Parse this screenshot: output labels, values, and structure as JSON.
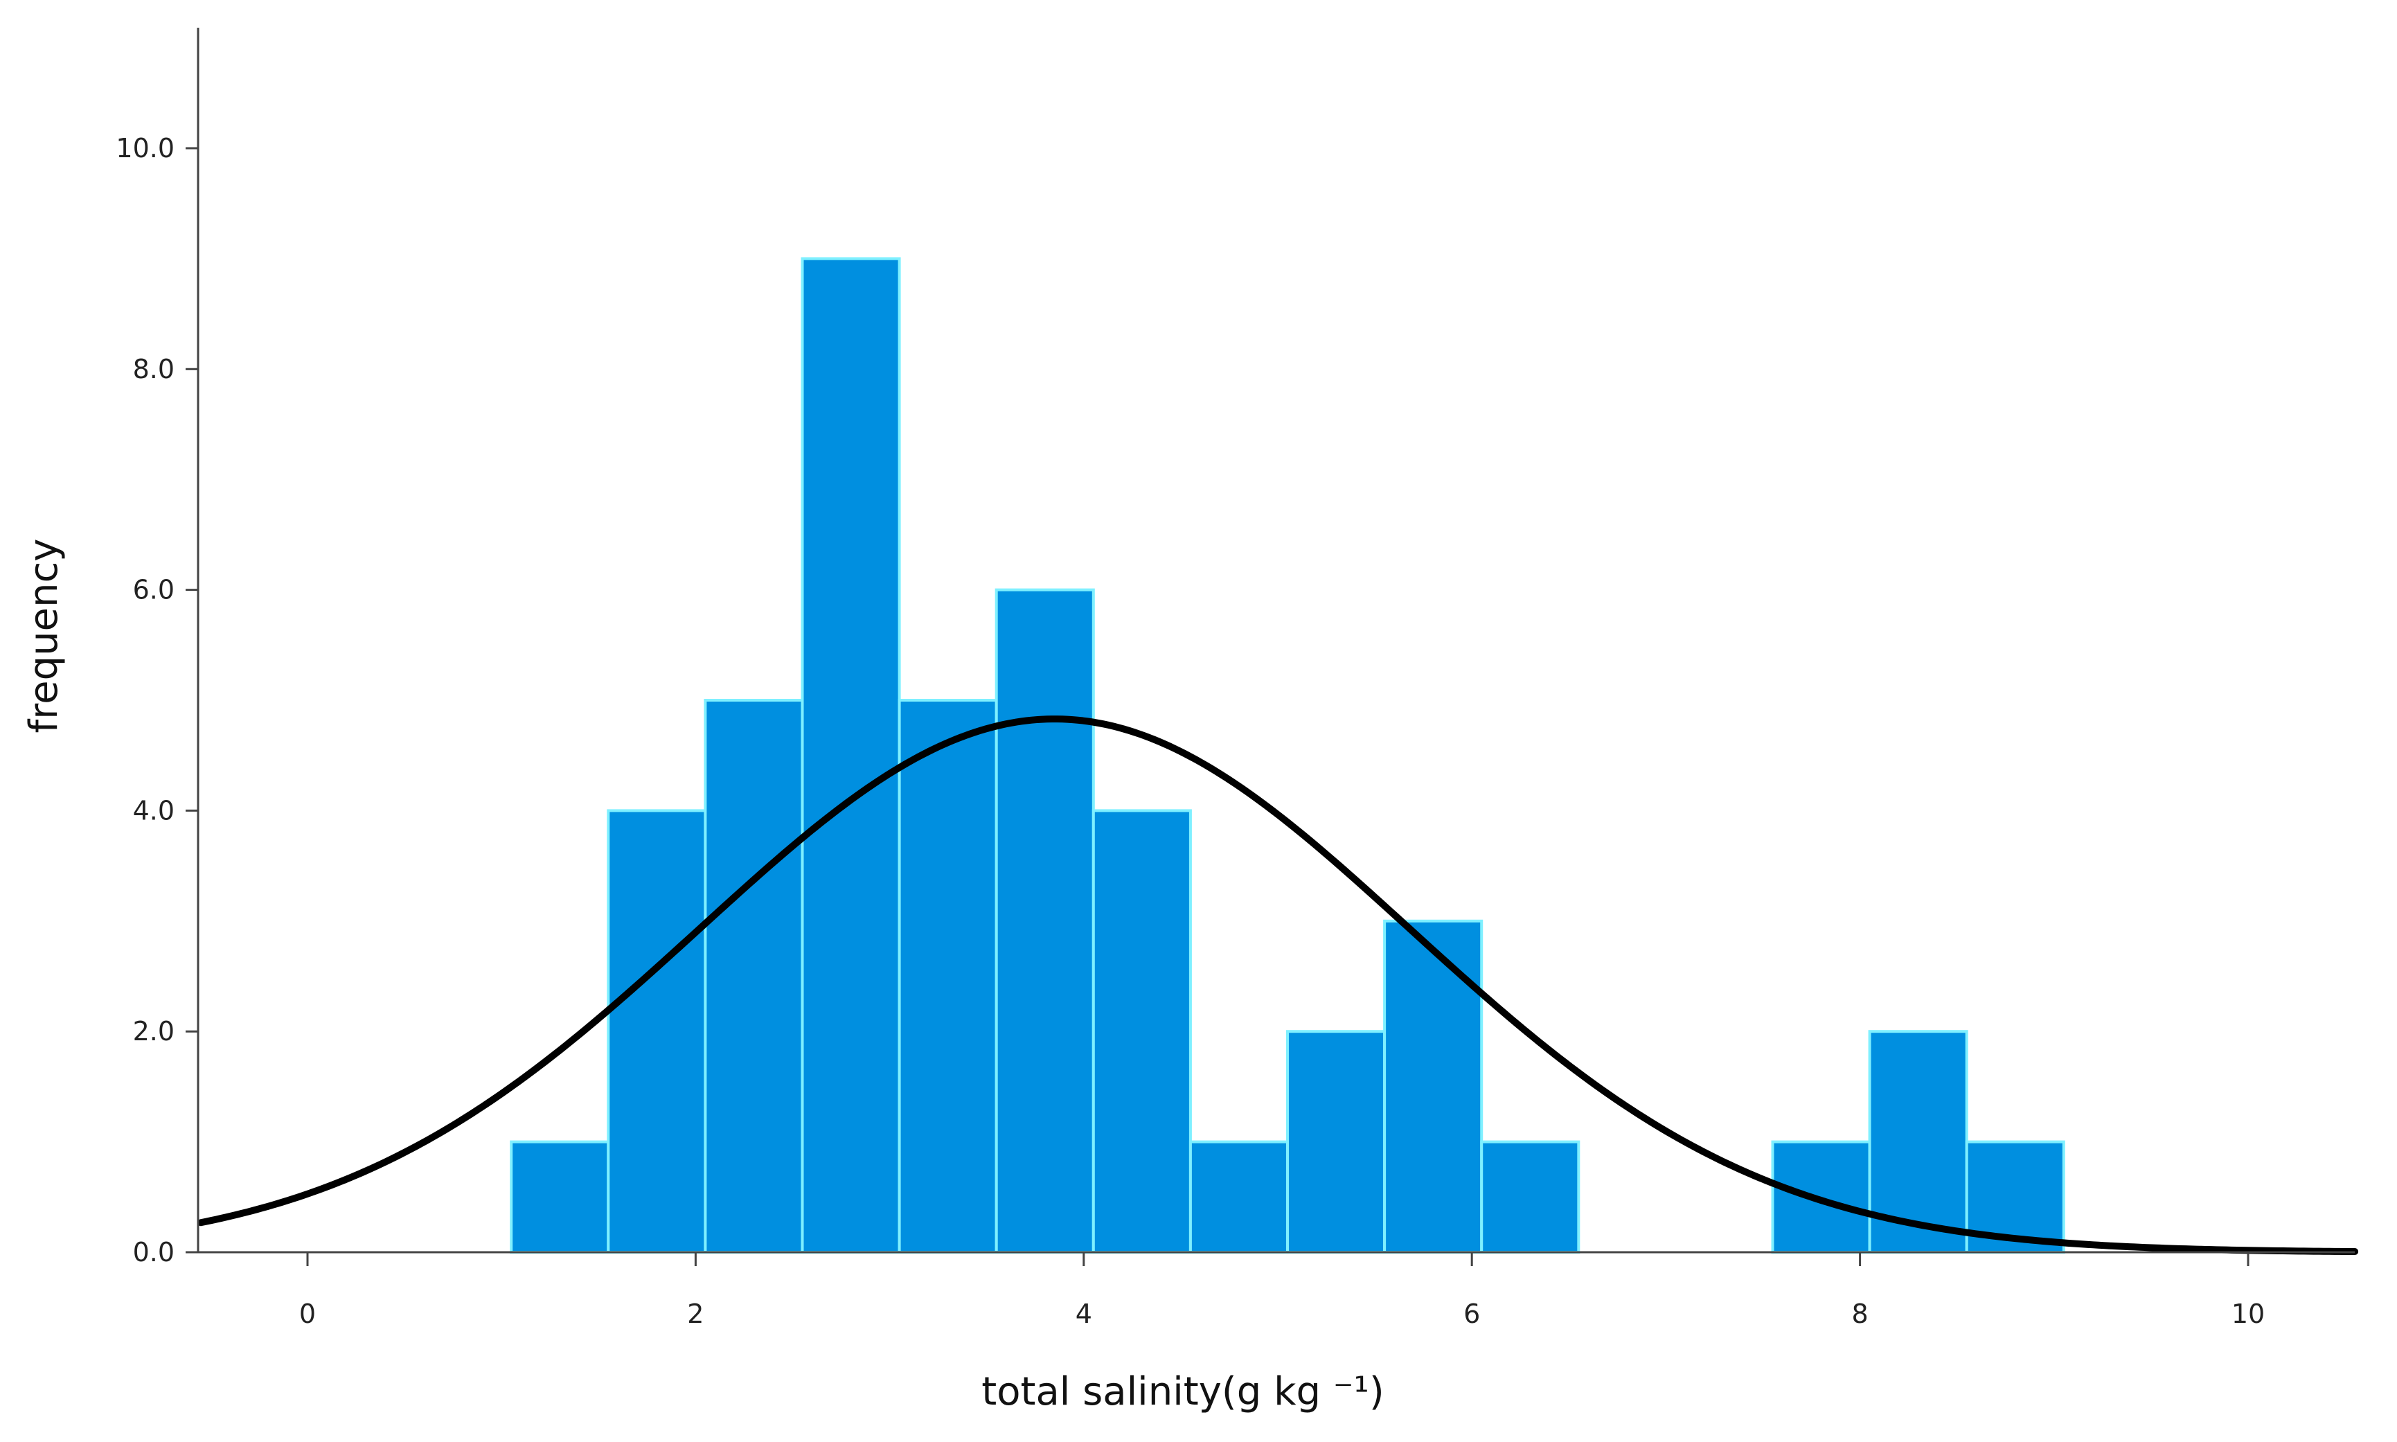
{
  "chart_data": {
    "type": "bar",
    "title": "",
    "xlabel": "total salinity(g kg ⁻¹)",
    "ylabel": "frequency",
    "xlim": [
      -0.55,
      10.55
    ],
    "ylim": [
      0,
      11
    ],
    "x_ticks": [
      "0",
      "2",
      "4",
      "6",
      "8",
      "10"
    ],
    "y_ticks": [
      "0.0",
      "2.0",
      "4.0",
      "6.0",
      "8.0",
      "10.0"
    ],
    "grid": false,
    "bin_width": 0.5,
    "bins": [
      {
        "start": 1.05,
        "end": 1.55,
        "value": 1
      },
      {
        "start": 1.55,
        "end": 2.05,
        "value": 4
      },
      {
        "start": 2.05,
        "end": 2.55,
        "value": 5
      },
      {
        "start": 2.55,
        "end": 3.05,
        "value": 9
      },
      {
        "start": 3.05,
        "end": 3.55,
        "value": 5
      },
      {
        "start": 3.55,
        "end": 4.05,
        "value": 6
      },
      {
        "start": 4.05,
        "end": 4.55,
        "value": 4
      },
      {
        "start": 4.55,
        "end": 5.05,
        "value": 1
      },
      {
        "start": 5.05,
        "end": 5.55,
        "value": 2
      },
      {
        "start": 5.55,
        "end": 6.05,
        "value": 3
      },
      {
        "start": 6.05,
        "end": 6.55,
        "value": 1
      },
      {
        "start": 7.55,
        "end": 8.05,
        "value": 1
      },
      {
        "start": 8.05,
        "end": 8.55,
        "value": 2
      },
      {
        "start": 8.55,
        "end": 9.05,
        "value": 1
      }
    ],
    "normal_curve": {
      "mean": 3.85,
      "sd": 1.83,
      "peak": 4.83
    },
    "colors": {
      "bar_fill": "#008fe0",
      "bar_edge": "#7ff0ff",
      "curve": "#000000",
      "axis": "#444444"
    }
  }
}
